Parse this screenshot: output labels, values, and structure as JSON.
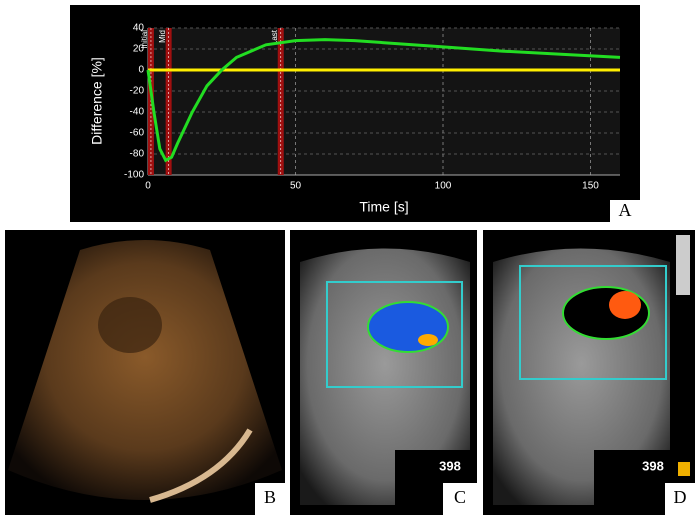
{
  "chart_data": {
    "type": "line",
    "panel_label": "A",
    "x_label": "Time [s]",
    "y_label": "Difference [%]",
    "xlim": [
      0,
      160
    ],
    "xticks": [
      0,
      50,
      100,
      150
    ],
    "ylim": [
      -100,
      40
    ],
    "yticks": [
      -100,
      -80,
      -60,
      -40,
      -20,
      0,
      20,
      40
    ],
    "grid": true,
    "series": [
      {
        "color": "#22dd22",
        "x": [
          0,
          2,
          4,
          6,
          8,
          10,
          15,
          20,
          25,
          30,
          40,
          50,
          60,
          70,
          80,
          100,
          120,
          140,
          160
        ],
        "values": [
          0,
          -40,
          -75,
          -86,
          -83,
          -70,
          -40,
          -15,
          0,
          12,
          24,
          28,
          29,
          28,
          26,
          22,
          18,
          15,
          12
        ]
      },
      {
        "color": "#ffee00",
        "x": [
          0,
          160
        ],
        "values": [
          0,
          0
        ]
      }
    ],
    "markers": [
      {
        "label": "Initial",
        "x": 1
      },
      {
        "label": "Mid",
        "x": 7
      },
      {
        "label": "Last",
        "x": 45
      }
    ]
  },
  "panels": [
    {
      "label": "B"
    },
    {
      "label": "C",
      "readout": "398"
    },
    {
      "label": "D",
      "readout": "398"
    }
  ]
}
